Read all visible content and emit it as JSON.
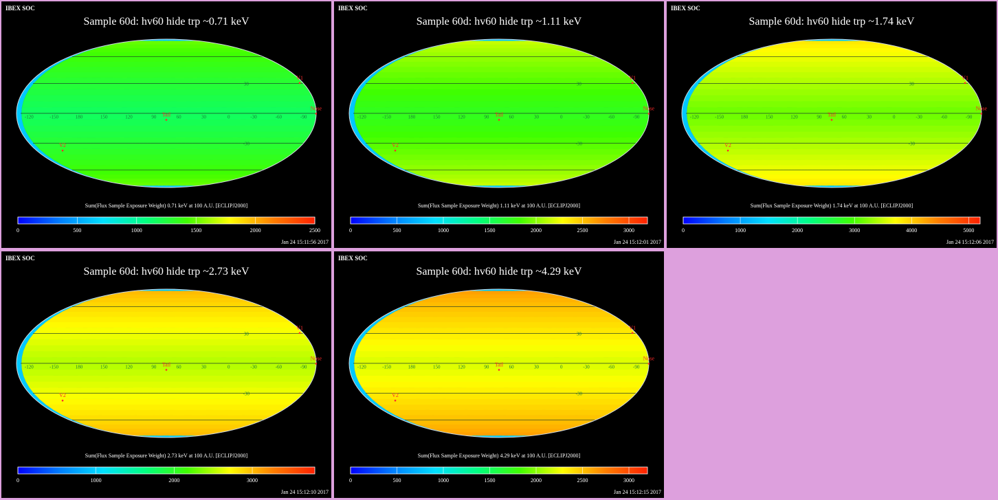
{
  "panels": [
    {
      "header": "IBEX SOC",
      "title": "Sample 60d: hv60 hide trp ~0.71 keV",
      "colorbar_title": "Sum(Flux Sample Exposure Weight)  0.71 keV at 100 A.U. [ECLIPJ2000]",
      "timestamp": "Jan 24 15:11:56 2017"
    },
    {
      "header": "IBEX SOC",
      "title": "Sample 60d: hv60 hide trp ~1.11 keV",
      "colorbar_title": "Sum(Flux Sample Exposure Weight)  1.11 keV at 100 A.U. [ECLIPJ2000]",
      "timestamp": "Jan 24 15:12:01 2017"
    },
    {
      "header": "IBEX SOC",
      "title": "Sample 60d: hv60 hide trp ~1.74 keV",
      "colorbar_title": "Sum(Flux Sample Exposure Weight)  1.74 keV at 100 A.U. [ECLIPJ2000]",
      "timestamp": "Jan 24 15:12:06 2017"
    },
    {
      "header": "IBEX SOC",
      "title": "Sample 60d: hv60 hide trp ~2.73 keV",
      "colorbar_title": "Sum(Flux Sample Exposure Weight)  2.73 keV at 100 A.U. [ECLIPJ2000]",
      "timestamp": "Jan 24 15:12:10 2017"
    },
    {
      "header": "IBEX SOC",
      "title": "Sample 60d: hv60 hide trp ~4.29 keV",
      "colorbar_title": "Sum(Flux Sample Exposure Weight)  4.29 keV at 100 A.U. [ECLIPJ2000]",
      "timestamp": "Jan 24 15:12:15 2017"
    }
  ],
  "colors": {
    "page_background": "#dda0dd",
    "panel_background": "#000000",
    "marker_color": "#ff2a2a",
    "grid_label_color": "#1a7a3a",
    "colormap": [
      "#0000ff",
      "#0080ff",
      "#00e0ff",
      "#00ff80",
      "#40ff00",
      "#ffff00",
      "#ff8000",
      "#ff2000"
    ]
  },
  "chart_data": [
    {
      "type": "heatmap",
      "projection": "Mollweide all-sky",
      "title": "Sample 60d: hv60 hide trp ~0.71 keV",
      "colorbar": {
        "min": 0,
        "max": 2500,
        "ticks": [
          0,
          500,
          1000,
          1500,
          2000,
          2500
        ]
      },
      "longitude_labels": [
        "60",
        "30",
        "0",
        "-30",
        "-60",
        "-90",
        "-120",
        "-150",
        "180",
        "150",
        "120",
        "90"
      ],
      "latitude_labels": [
        "30",
        "-30"
      ],
      "markers": [
        {
          "label": "V1",
          "lon": -105,
          "lat": 34
        },
        {
          "label": "V2",
          "lon": -145,
          "lat": -34
        },
        {
          "label": "Nose",
          "lon": -105,
          "lat": 3
        },
        {
          "label": "Tail",
          "lon": 75,
          "lat": -3
        }
      ]
    },
    {
      "type": "heatmap",
      "projection": "Mollweide all-sky",
      "title": "Sample 60d: hv60 hide trp ~1.11 keV",
      "colorbar": {
        "min": 0,
        "max": 3200,
        "ticks": [
          0,
          500,
          1000,
          1500,
          2000,
          2500,
          3000
        ]
      },
      "longitude_labels": [
        "60",
        "30",
        "0",
        "-30",
        "-60",
        "-90",
        "-120",
        "-150",
        "180",
        "150",
        "120",
        "90"
      ],
      "latitude_labels": [
        "30",
        "-30"
      ],
      "markers": [
        {
          "label": "V1",
          "lon": -105,
          "lat": 34
        },
        {
          "label": "V2",
          "lon": -145,
          "lat": -34
        },
        {
          "label": "Nose",
          "lon": -105,
          "lat": 3
        },
        {
          "label": "Tail",
          "lon": 75,
          "lat": -3
        }
      ]
    },
    {
      "type": "heatmap",
      "projection": "Mollweide all-sky",
      "title": "Sample 60d: hv60 hide trp ~1.74 keV",
      "colorbar": {
        "min": 0,
        "max": 5200,
        "ticks": [
          0,
          1000,
          2000,
          3000,
          4000,
          5000
        ]
      },
      "longitude_labels": [
        "60",
        "30",
        "0",
        "-30",
        "-60",
        "-90",
        "-120",
        "-150",
        "180",
        "150",
        "120",
        "90"
      ],
      "latitude_labels": [
        "30",
        "-30"
      ],
      "markers": [
        {
          "label": "V1",
          "lon": -105,
          "lat": 34
        },
        {
          "label": "V2",
          "lon": -145,
          "lat": -34
        },
        {
          "label": "Nose",
          "lon": -105,
          "lat": 3
        },
        {
          "label": "Tail",
          "lon": 75,
          "lat": -3
        }
      ]
    },
    {
      "type": "heatmap",
      "projection": "Mollweide all-sky",
      "title": "Sample 60d: hv60 hide trp ~2.73 keV",
      "colorbar": {
        "min": 0,
        "max": 3800,
        "ticks": [
          0,
          1000,
          2000,
          3000
        ]
      },
      "longitude_labels": [
        "60",
        "30",
        "0",
        "-30",
        "-60",
        "-90",
        "-120",
        "-150",
        "180",
        "150",
        "120",
        "90"
      ],
      "latitude_labels": [
        "30",
        "-30"
      ],
      "markers": [
        {
          "label": "V1",
          "lon": -105,
          "lat": 34
        },
        {
          "label": "V2",
          "lon": -145,
          "lat": -34
        },
        {
          "label": "Nose",
          "lon": -105,
          "lat": 3
        },
        {
          "label": "Tail",
          "lon": 75,
          "lat": -3
        }
      ]
    },
    {
      "type": "heatmap",
      "projection": "Mollweide all-sky",
      "title": "Sample 60d: hv60 hide trp ~4.29 keV",
      "colorbar": {
        "min": 0,
        "max": 3200,
        "ticks": [
          0,
          500,
          1000,
          1500,
          2000,
          2500,
          3000
        ]
      },
      "longitude_labels": [
        "60",
        "30",
        "0",
        "-30",
        "-60",
        "-90",
        "-120",
        "-150",
        "180",
        "150",
        "120",
        "90"
      ],
      "latitude_labels": [
        "30",
        "-30"
      ],
      "markers": [
        {
          "label": "V1",
          "lon": -105,
          "lat": 34
        },
        {
          "label": "V2",
          "lon": -145,
          "lat": -34
        },
        {
          "label": "Nose",
          "lon": -105,
          "lat": 3
        },
        {
          "label": "Tail",
          "lon": 75,
          "lat": -3
        }
      ]
    }
  ]
}
